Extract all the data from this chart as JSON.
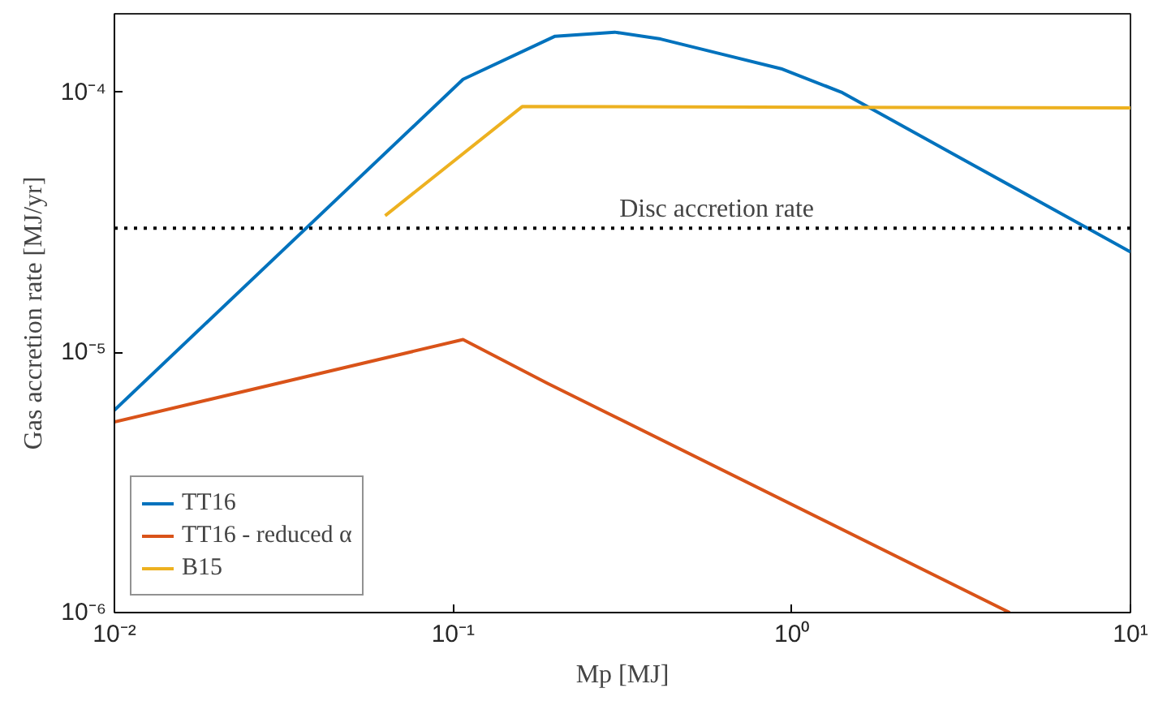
{
  "chart_data": {
    "type": "line",
    "xlabel": "Mp [MJ]",
    "ylabel": "Gas accretion rate [MJ/yr]",
    "log": "xy",
    "xlim": [
      0.01,
      10
    ],
    "ylim": [
      1e-06,
      0.0002
    ],
    "xticks": [
      {
        "value": 0.01,
        "label": "10⁻²"
      },
      {
        "value": 0.1,
        "label": "10⁻¹"
      },
      {
        "value": 1,
        "label": "10⁰"
      },
      {
        "value": 10,
        "label": "10¹"
      }
    ],
    "yticks": [
      {
        "value": 1e-06,
        "label": "10⁻⁶"
      },
      {
        "value": 1e-05,
        "label": "10⁻⁵"
      },
      {
        "value": 0.0001,
        "label": "10⁻⁴"
      }
    ],
    "grid": false,
    "legend": "bottom left",
    "line_style": "solid",
    "series": [
      {
        "name": "TT16",
        "color": "#0072bd",
        "x": [
          0.01,
          0.107,
          0.2,
          0.3,
          0.41,
          0.62,
          0.93,
          1.4,
          3.3,
          10
        ],
        "values": [
          6e-06,
          0.000112,
          0.000164,
          0.00017,
          0.00016,
          0.00014,
          0.000123,
          0.0001,
          5.4e-05,
          2.43e-05
        ]
      },
      {
        "name": "TT16 - reduced α",
        "color": "#d95319",
        "x": [
          0.01,
          0.107,
          0.19,
          4.4
        ],
        "values": [
          5.4e-06,
          1.12e-05,
          7.6e-06,
          1e-06
        ]
      },
      {
        "name": "B15",
        "color": "#edb120",
        "x": [
          0.063,
          0.16,
          10
        ],
        "values": [
          3.35e-05,
          8.8e-05,
          8.7e-05
        ]
      }
    ],
    "ref_lines": [
      {
        "axis": "y",
        "value": 3e-05,
        "label": "Disc accretion rate",
        "color": "#000000",
        "line_style": "dotted"
      }
    ]
  }
}
